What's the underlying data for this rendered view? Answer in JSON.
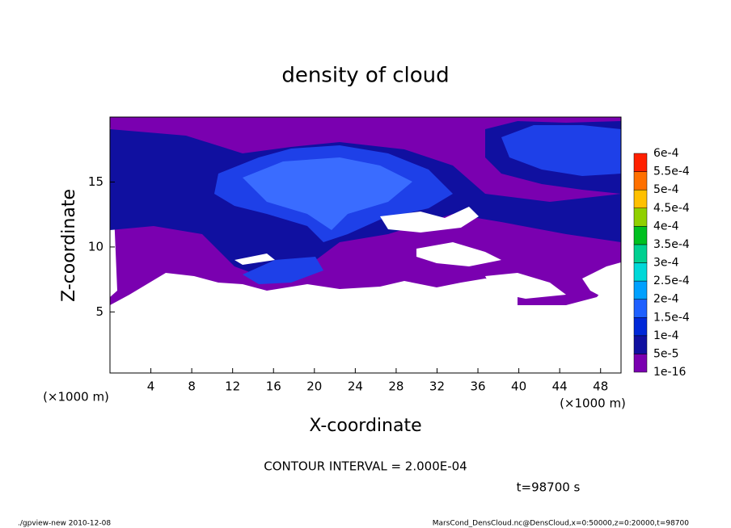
{
  "chart_data": {
    "type": "contour",
    "title": "density of cloud",
    "x_label": "X-coordinate",
    "y_label": "Z-coordinate",
    "x_unit_label": "(×1000 m)",
    "y_unit_label": "(×1000 m)",
    "xlim": [
      0,
      50
    ],
    "xticks": [
      4,
      8,
      12,
      16,
      20,
      24,
      28,
      32,
      36,
      40,
      44,
      48
    ],
    "ylim": [
      0.3,
      20
    ],
    "yticks": [
      5,
      10,
      15
    ],
    "colorbar": {
      "levels": [
        1e-16,
        5e-05,
        0.0001,
        0.00015,
        0.0002,
        0.00025,
        0.0003,
        0.00035,
        0.0004,
        0.00045,
        0.0005,
        0.00055,
        0.0006
      ],
      "value_labels": [
        "1e-16",
        "5e-5",
        "1e-4",
        "1.5e-4",
        "2e-4",
        "2.5e-4",
        "3e-4",
        "3.5e-4",
        "4e-4",
        "4.5e-4",
        "5e-4",
        "5.5e-4",
        "6e-4"
      ],
      "colors": [
        "#7a00b0",
        "#1010a0",
        "#0028d8",
        "#1e60ff",
        "#00a0ff",
        "#00d8d8",
        "#00d090",
        "#00c020",
        "#90d000",
        "#ffc000",
        "#ff7000",
        "#ff2000"
      ]
    },
    "contour_interval": "CONTOUR INTERVAL = 2.000E-04",
    "time_label": "t=98700 s"
  },
  "footer": {
    "left": "./gpview-new  2010-12-08",
    "right": "MarsCond_DensCloud.nc@DensCloud,x=0:50000,z=0:20000,t=98700"
  }
}
